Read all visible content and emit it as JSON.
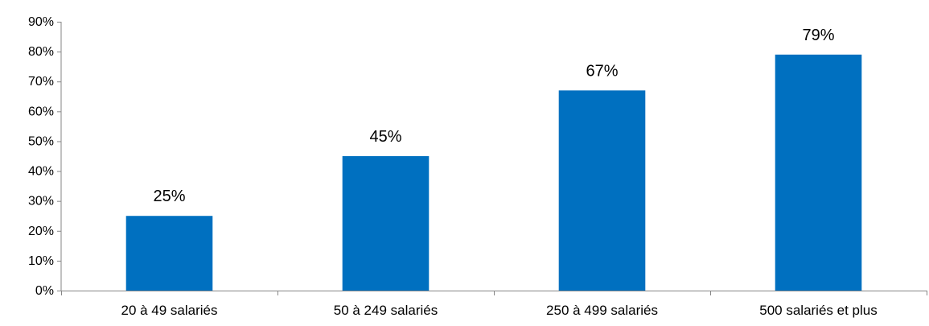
{
  "chart_data": {
    "type": "bar",
    "categories": [
      "20 à 49 salariés",
      "50 à 249 salariés",
      "250 à 499 salariés",
      "500 salariés et plus"
    ],
    "values": [
      25,
      45,
      67,
      79
    ],
    "data_labels": [
      "25%",
      "45%",
      "67%",
      "79%"
    ],
    "ylim": [
      0,
      90
    ],
    "y_ticks": [
      0,
      10,
      20,
      30,
      40,
      50,
      60,
      70,
      80,
      90
    ],
    "y_tick_labels": [
      "0%",
      "10%",
      "20%",
      "30%",
      "40%",
      "50%",
      "60%",
      "70%",
      "80%",
      "90%"
    ],
    "title": "",
    "xlabel": "",
    "ylabel": "",
    "grid": false,
    "legend": "none",
    "colors": {
      "bar": "#0070C0",
      "axis": "#868686"
    }
  }
}
